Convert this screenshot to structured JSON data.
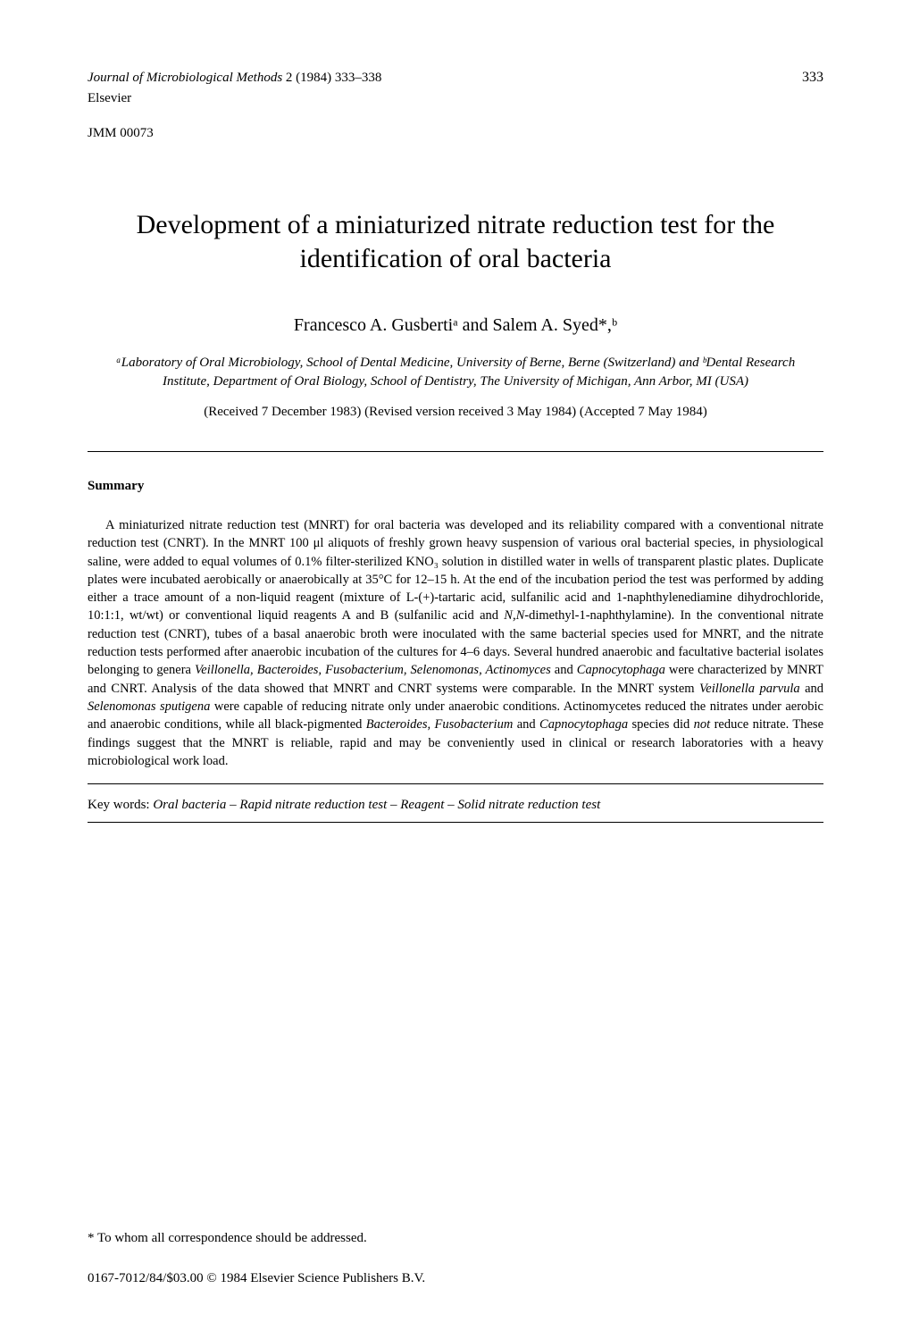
{
  "header": {
    "journal_name": "Journal of Microbiological Methods",
    "volume_info": " 2 (1984) 333–338",
    "page_number": "333",
    "publisher": "Elsevier",
    "article_code": "JMM 00073"
  },
  "title": "Development of a miniaturized nitrate reduction test for the identification of oral bacteria",
  "authors": "Francesco A. Gusbertiᵃ and Salem A. Syed*,ᵇ",
  "affiliations": "ᵃLaboratory of Oral Microbiology, School of Dental Medicine, University of Berne, Berne (Switzerland) and ᵇDental Research Institute, Department of Oral Biology, School of Dentistry, The University of Michigan, Ann Arbor, MI (USA)",
  "dates": "(Received 7 December 1983) (Revised version received 3 May 1984) (Accepted 7 May 1984)",
  "summary": {
    "heading": "Summary",
    "text": "A miniaturized nitrate reduction test (MNRT) for oral bacteria was developed and its reliability compared with a conventional nitrate reduction test (CNRT). In the MNRT 100 μl aliquots of freshly grown heavy suspension of various oral bacterial species, in physiological saline, were added to equal volumes of 0.1% filter-sterilized KNO₃ solution in distilled water in wells of transparent plastic plates. Duplicate plates were incubated aerobically or anaerobically at 35°C for 12–15 h. At the end of the incubation period the test was performed by adding either a trace amount of a non-liquid reagent (mixture of L-(+)-tartaric acid, sulfanilic acid and 1-naphthylenediamine dihydrochloride, 10:1:1, wt/wt) or conventional liquid reagents A and B (sulfanilic acid and N,N-dimethyl-1-naphthylamine). In the conventional nitrate reduction test (CNRT), tubes of a basal anaerobic broth were inoculated with the same bacterial species used for MNRT, and the nitrate reduction tests performed after anaerobic incubation of the cultures for 4–6 days. Several hundred anaerobic and facultative bacterial isolates belonging to genera Veillonella, Bacteroides, Fusobacterium, Selenomonas, Actinomyces and Capnocytophaga were characterized by MNRT and CNRT. Analysis of the data showed that MNRT and CNRT systems were comparable. In the MNRT system Veillonella parvula and Selenomonas sputigena were capable of reducing nitrate only under anaerobic conditions. Actinomycetes reduced the nitrates under aerobic and anaerobic conditions, while all black-pigmented Bacteroides, Fusobacterium and Capnocytophaga species did not reduce nitrate. These findings suggest that the MNRT is reliable, rapid and may be conveniently used in clinical or research laboratories with a heavy microbiological work load."
  },
  "keywords": {
    "label": "Key words: ",
    "content": "Oral bacteria – Rapid nitrate reduction test – Reagent – Solid nitrate reduction test"
  },
  "footnote": "*    To whom all correspondence should be addressed.",
  "copyright": "0167-7012/84/$03.00 © 1984 Elsevier Science Publishers B.V."
}
